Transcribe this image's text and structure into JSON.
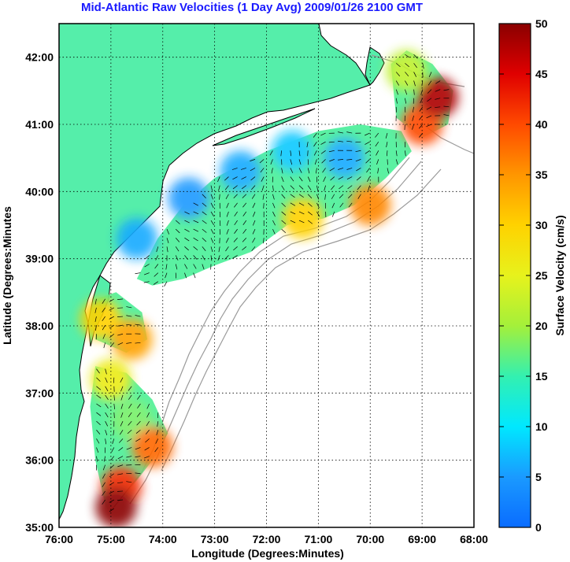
{
  "title": "Mid-Atlantic Raw Velocities (1 Day Avg) 2009/01/26 2100 GMT",
  "chart_data": {
    "type": "heatmap",
    "xlabel": "Longitude (Degrees:Minutes)",
    "ylabel": "Latitude (Degrees:Minutes",
    "x_tick_labels": [
      "76:00",
      "75:00",
      "74:00",
      "73:00",
      "72:00",
      "71:00",
      "70:00",
      "69:00",
      "68:00"
    ],
    "y_tick_labels": [
      "35:00",
      "36:00",
      "37:00",
      "38:00",
      "39:00",
      "40:00",
      "41:00",
      "42:00"
    ],
    "xlim": [
      -76,
      -68
    ],
    "ylim": [
      35,
      42.5
    ],
    "grid": true,
    "colorbar": {
      "label": "Surface Velocity (cm/s)",
      "range": [
        0,
        50
      ],
      "tick_labels": [
        "0",
        "5",
        "10",
        "15",
        "20",
        "25",
        "30",
        "35",
        "40",
        "45",
        "50"
      ]
    },
    "colors": {
      "land": "#55eeaa",
      "ocean": "#ffffff",
      "isobath": "#999999",
      "coast": "#000000",
      "title": "#1a1aff"
    },
    "speed_field": [
      {
        "lon": -74.5,
        "lat": 39.3,
        "speed": 6
      },
      {
        "lon": -73.5,
        "lat": 39.9,
        "speed": 5
      },
      {
        "lon": -72.5,
        "lat": 40.3,
        "speed": 6
      },
      {
        "lon": -71.5,
        "lat": 40.6,
        "speed": 8
      },
      {
        "lon": -70.5,
        "lat": 40.5,
        "speed": 6
      },
      {
        "lon": -71.3,
        "lat": 39.6,
        "speed": 30
      },
      {
        "lon": -70.0,
        "lat": 39.8,
        "speed": 36
      },
      {
        "lon": -69.0,
        "lat": 41.0,
        "speed": 40
      },
      {
        "lon": -68.7,
        "lat": 41.4,
        "speed": 48
      },
      {
        "lon": -69.3,
        "lat": 41.8,
        "speed": 22
      },
      {
        "lon": -75.2,
        "lat": 38.1,
        "speed": 30
      },
      {
        "lon": -74.6,
        "lat": 37.8,
        "speed": 34
      },
      {
        "lon": -75.0,
        "lat": 37.2,
        "speed": 26
      },
      {
        "lon": -74.6,
        "lat": 36.6,
        "speed": 18
      },
      {
        "lon": -74.2,
        "lat": 36.2,
        "speed": 38
      },
      {
        "lon": -74.8,
        "lat": 35.6,
        "speed": 42
      },
      {
        "lon": -74.9,
        "lat": 35.3,
        "speed": 50
      }
    ]
  }
}
